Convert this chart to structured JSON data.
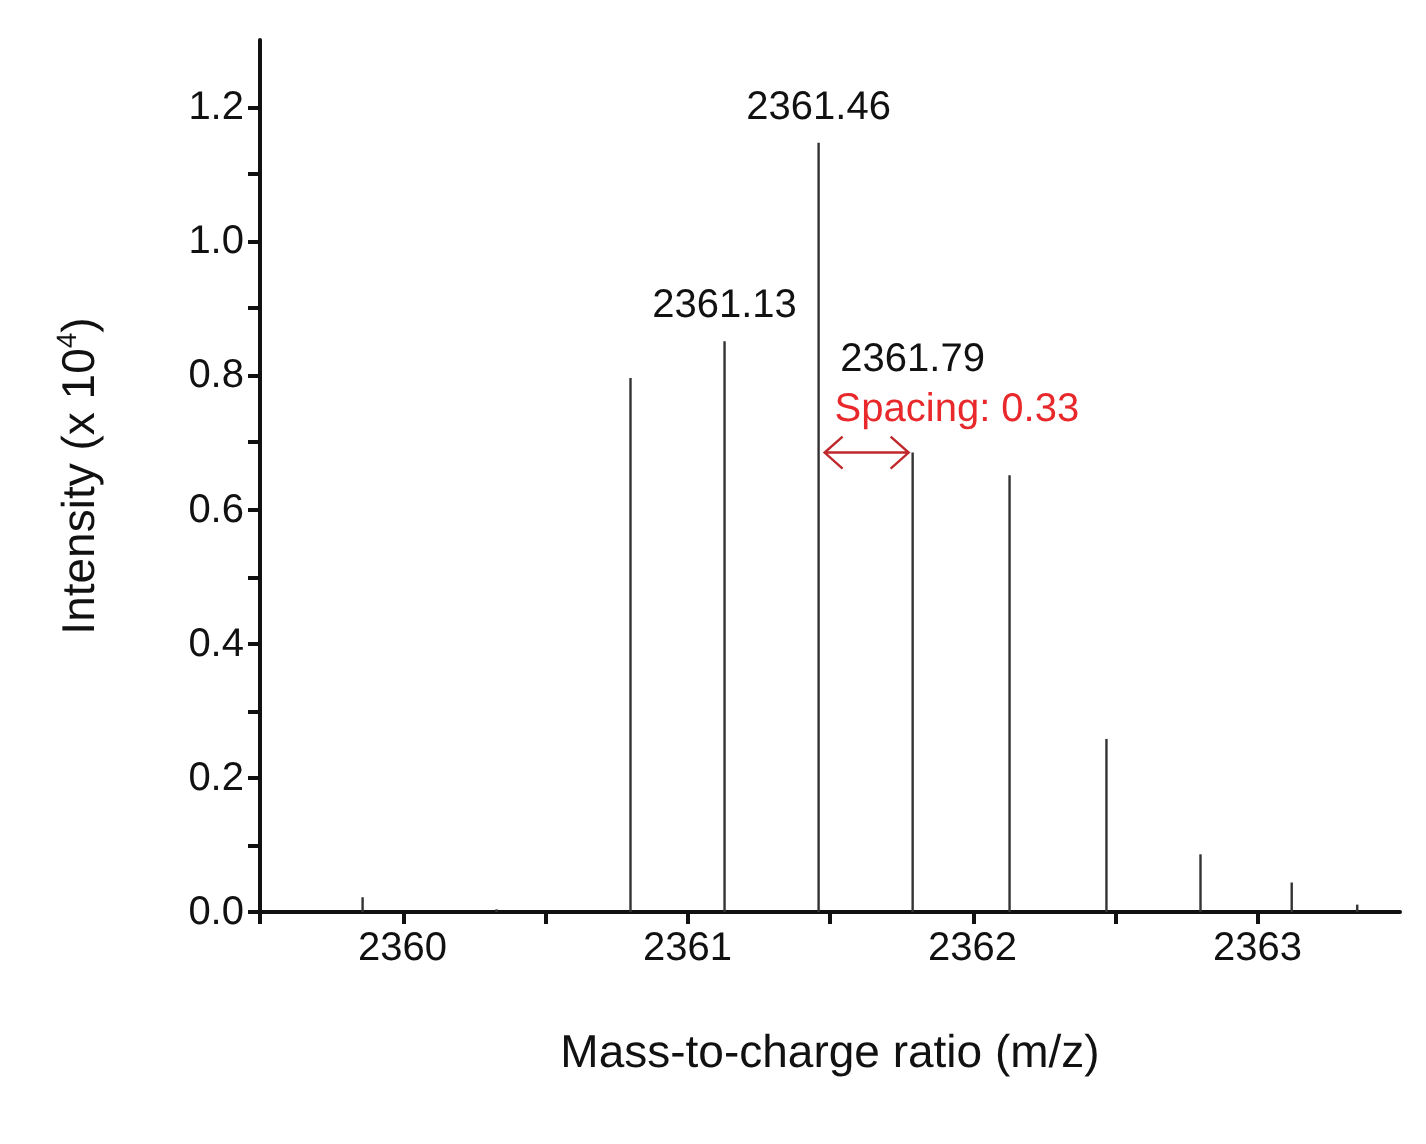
{
  "chart_data": {
    "type": "bar",
    "xlabel": "Mass-to-charge ratio (m/z)",
    "ylabel": "Intensity (x 10$^{4}$)",
    "x": [
      2359.86,
      2360.33,
      2360.8,
      2361.13,
      2361.46,
      2361.79,
      2362.13,
      2362.47,
      2362.8,
      2363.12,
      2363.35
    ],
    "values": [
      0.022,
      0.004,
      0.796,
      0.851,
      1.147,
      0.685,
      0.651,
      0.258,
      0.086,
      0.044,
      0.011
    ],
    "color": "#333333",
    "annotations": [
      "Spacing: 0.33",
      {
        "text": "2361.13",
        "x": 2361.13,
        "y": 0.851
      },
      {
        "text": "2361.46",
        "x": 2361.46,
        "y": 1.147
      },
      {
        "text": "2361.79",
        "x": 2361.79,
        "y": 0.685
      }
    ],
    "xlim": [
      2359.5,
      2363.5
    ],
    "xticks": [
      {
        "value": 2359.5,
        "label": null
      },
      2360,
      {
        "value": 2360.5,
        "label": null
      },
      2361,
      {
        "value": 2361.5,
        "label": null
      },
      2362,
      {
        "value": 2362.5,
        "label": null
      },
      2363
    ],
    "ylim": [
      0,
      1.3
    ],
    "yticks": [
      "0.0",
      {
        "value": 0.1,
        "label": null
      },
      {
        "value": 0.2,
        "label": "0.2"
      },
      {
        "value": 0.3,
        "label": null
      },
      {
        "value": 0.4,
        "label": "0.4"
      },
      {
        "value": 0.5,
        "label": null
      },
      {
        "value": 0.6,
        "label": "0.6"
      },
      {
        "value": 0.7,
        "label": null
      },
      {
        "value": 0.8,
        "label": "0.8"
      },
      {
        "value": 0.9,
        "label": null
      },
      {
        "value": 1.0,
        "label": "1.0"
      },
      {
        "value": 1.1,
        "label": null
      },
      {
        "value": 1.2,
        "label": "1.2"
      }
    ],
    "grid": false
  }
}
